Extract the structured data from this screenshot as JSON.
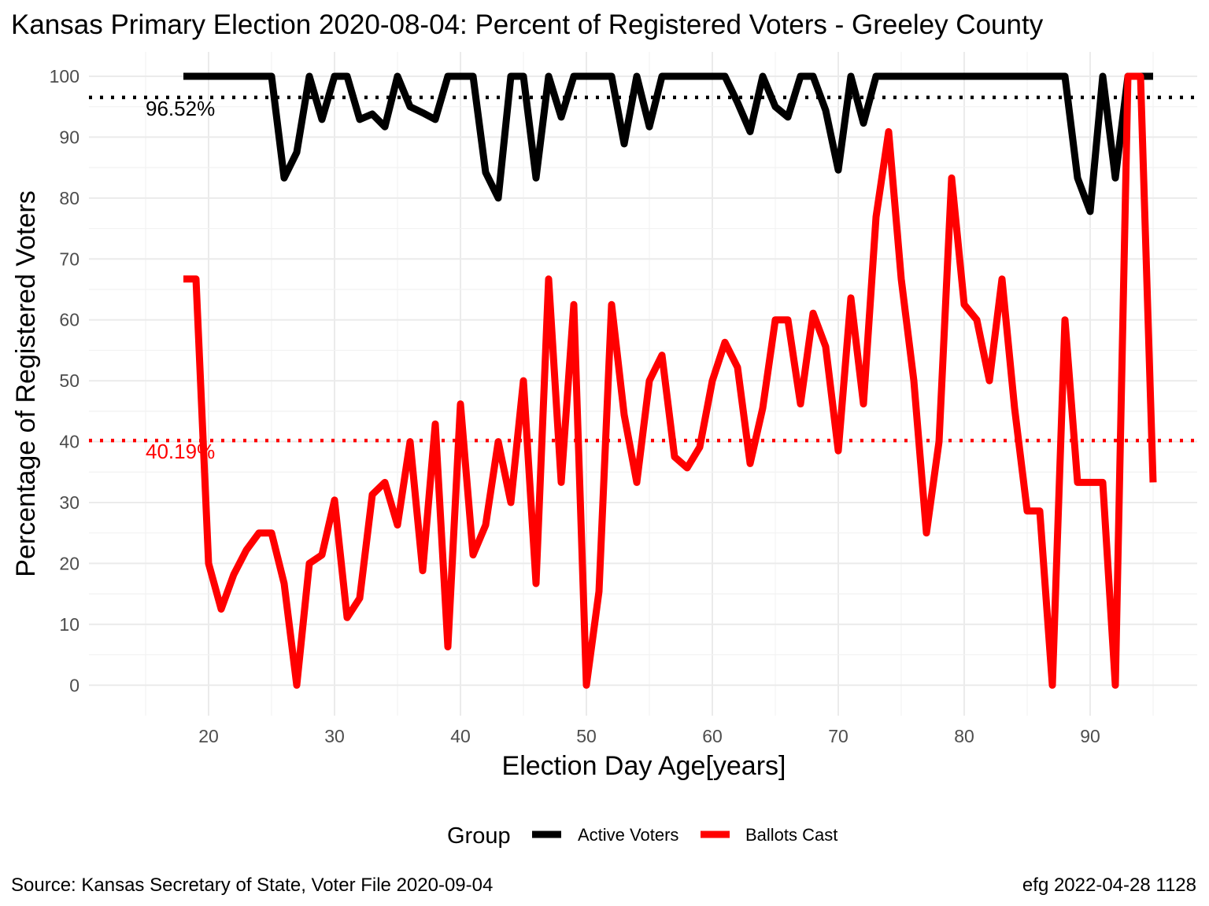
{
  "chart_data": {
    "type": "line",
    "title": "Kansas Primary Election 2020-08-04:  Percent of Registered Voters - Greeley County",
    "xlabel": "Election Day Age[years]",
    "ylabel": "Percentage of Registered Voters",
    "xlim": [
      10.5,
      98.5
    ],
    "ylim": [
      -5,
      104
    ],
    "x_ticks": [
      20,
      30,
      40,
      50,
      60,
      70,
      80,
      90
    ],
    "y_ticks": [
      0,
      10,
      20,
      30,
      40,
      50,
      60,
      70,
      80,
      90,
      100
    ],
    "grid": true,
    "legend": {
      "title": "Group",
      "position": "bottom",
      "entries": [
        {
          "label": "Active Voters",
          "color": "#000000"
        },
        {
          "label": "Ballots Cast",
          "color": "#ff0000"
        }
      ]
    },
    "reference_lines": [
      {
        "label": "96.52%",
        "value": 96.52,
        "color": "#000000"
      },
      {
        "label": "40.19%",
        "value": 40.19,
        "color": "#ff0000"
      }
    ],
    "series": [
      {
        "name": "Active Voters",
        "color": "#000000",
        "x": [
          18,
          19,
          20,
          21,
          22,
          23,
          24,
          25,
          26,
          27,
          28,
          29,
          30,
          31,
          32,
          33,
          34,
          35,
          36,
          37,
          38,
          39,
          40,
          41,
          42,
          43,
          44,
          45,
          46,
          47,
          48,
          49,
          50,
          51,
          52,
          53,
          54,
          55,
          56,
          57,
          58,
          59,
          60,
          61,
          62,
          63,
          64,
          65,
          66,
          67,
          68,
          69,
          70,
          71,
          72,
          73,
          74,
          75,
          76,
          77,
          78,
          79,
          80,
          81,
          82,
          83,
          84,
          85,
          86,
          87,
          88,
          89,
          90,
          91,
          92,
          93,
          94,
          95
        ],
        "values": [
          100,
          100,
          100,
          100,
          100,
          100,
          100,
          100,
          83.3,
          87.5,
          100,
          92.9,
          100,
          100,
          92.9,
          93.8,
          91.7,
          100,
          95,
          94,
          92.9,
          100,
          100,
          100,
          84.2,
          80,
          100,
          100,
          83.3,
          100,
          93.3,
          100,
          100,
          100,
          100,
          88.9,
          100,
          91.7,
          100,
          100,
          100,
          100,
          100,
          100,
          95.7,
          90.9,
          100,
          95,
          93.3,
          100,
          100,
          94.4,
          84.6,
          100,
          92.3,
          100,
          100,
          100,
          100,
          100,
          100,
          100,
          100,
          100,
          100,
          100,
          100,
          100,
          100,
          100,
          100,
          83.3,
          77.8,
          100,
          83.3,
          100,
          100,
          100
        ]
      },
      {
        "name": "Ballots Cast",
        "color": "#ff0000",
        "x": [
          18,
          19,
          20,
          21,
          22,
          23,
          24,
          25,
          26,
          27,
          28,
          29,
          30,
          31,
          32,
          33,
          34,
          35,
          36,
          37,
          38,
          39,
          40,
          41,
          42,
          43,
          44,
          45,
          46,
          47,
          48,
          49,
          50,
          51,
          52,
          53,
          54,
          55,
          56,
          57,
          58,
          59,
          60,
          61,
          62,
          63,
          64,
          65,
          66,
          67,
          68,
          69,
          70,
          71,
          72,
          73,
          74,
          75,
          76,
          77,
          78,
          79,
          80,
          81,
          82,
          83,
          84,
          85,
          86,
          87,
          88,
          89,
          90,
          91,
          92,
          93,
          94,
          95
        ],
        "values": [
          66.7,
          66.7,
          20,
          12.5,
          18.2,
          22.2,
          25,
          25,
          16.7,
          0,
          20,
          21.4,
          30.4,
          11.1,
          14.3,
          31.3,
          33.3,
          26.3,
          40,
          18.8,
          42.9,
          6.3,
          46.2,
          21.4,
          26.3,
          40,
          30,
          50,
          16.7,
          66.7,
          33.3,
          62.5,
          0,
          15.4,
          62.5,
          44.4,
          33.3,
          50,
          54.2,
          37.5,
          35.7,
          39.1,
          50,
          56.3,
          52.2,
          36.4,
          45.5,
          60,
          60,
          46.2,
          61.1,
          55.6,
          38.5,
          63.6,
          46.2,
          76.9,
          90.9,
          66.7,
          50,
          25,
          40,
          83.3,
          62.5,
          60,
          50,
          66.7,
          45.5,
          28.6,
          28.6,
          0,
          60,
          33.3,
          33.3,
          33.3,
          0,
          100,
          100,
          33.3
        ]
      }
    ]
  },
  "caption_left": "Source:  Kansas Secretary of State, Voter File  2020-09-04",
  "caption_right": "efg 2022-04-28 1128"
}
